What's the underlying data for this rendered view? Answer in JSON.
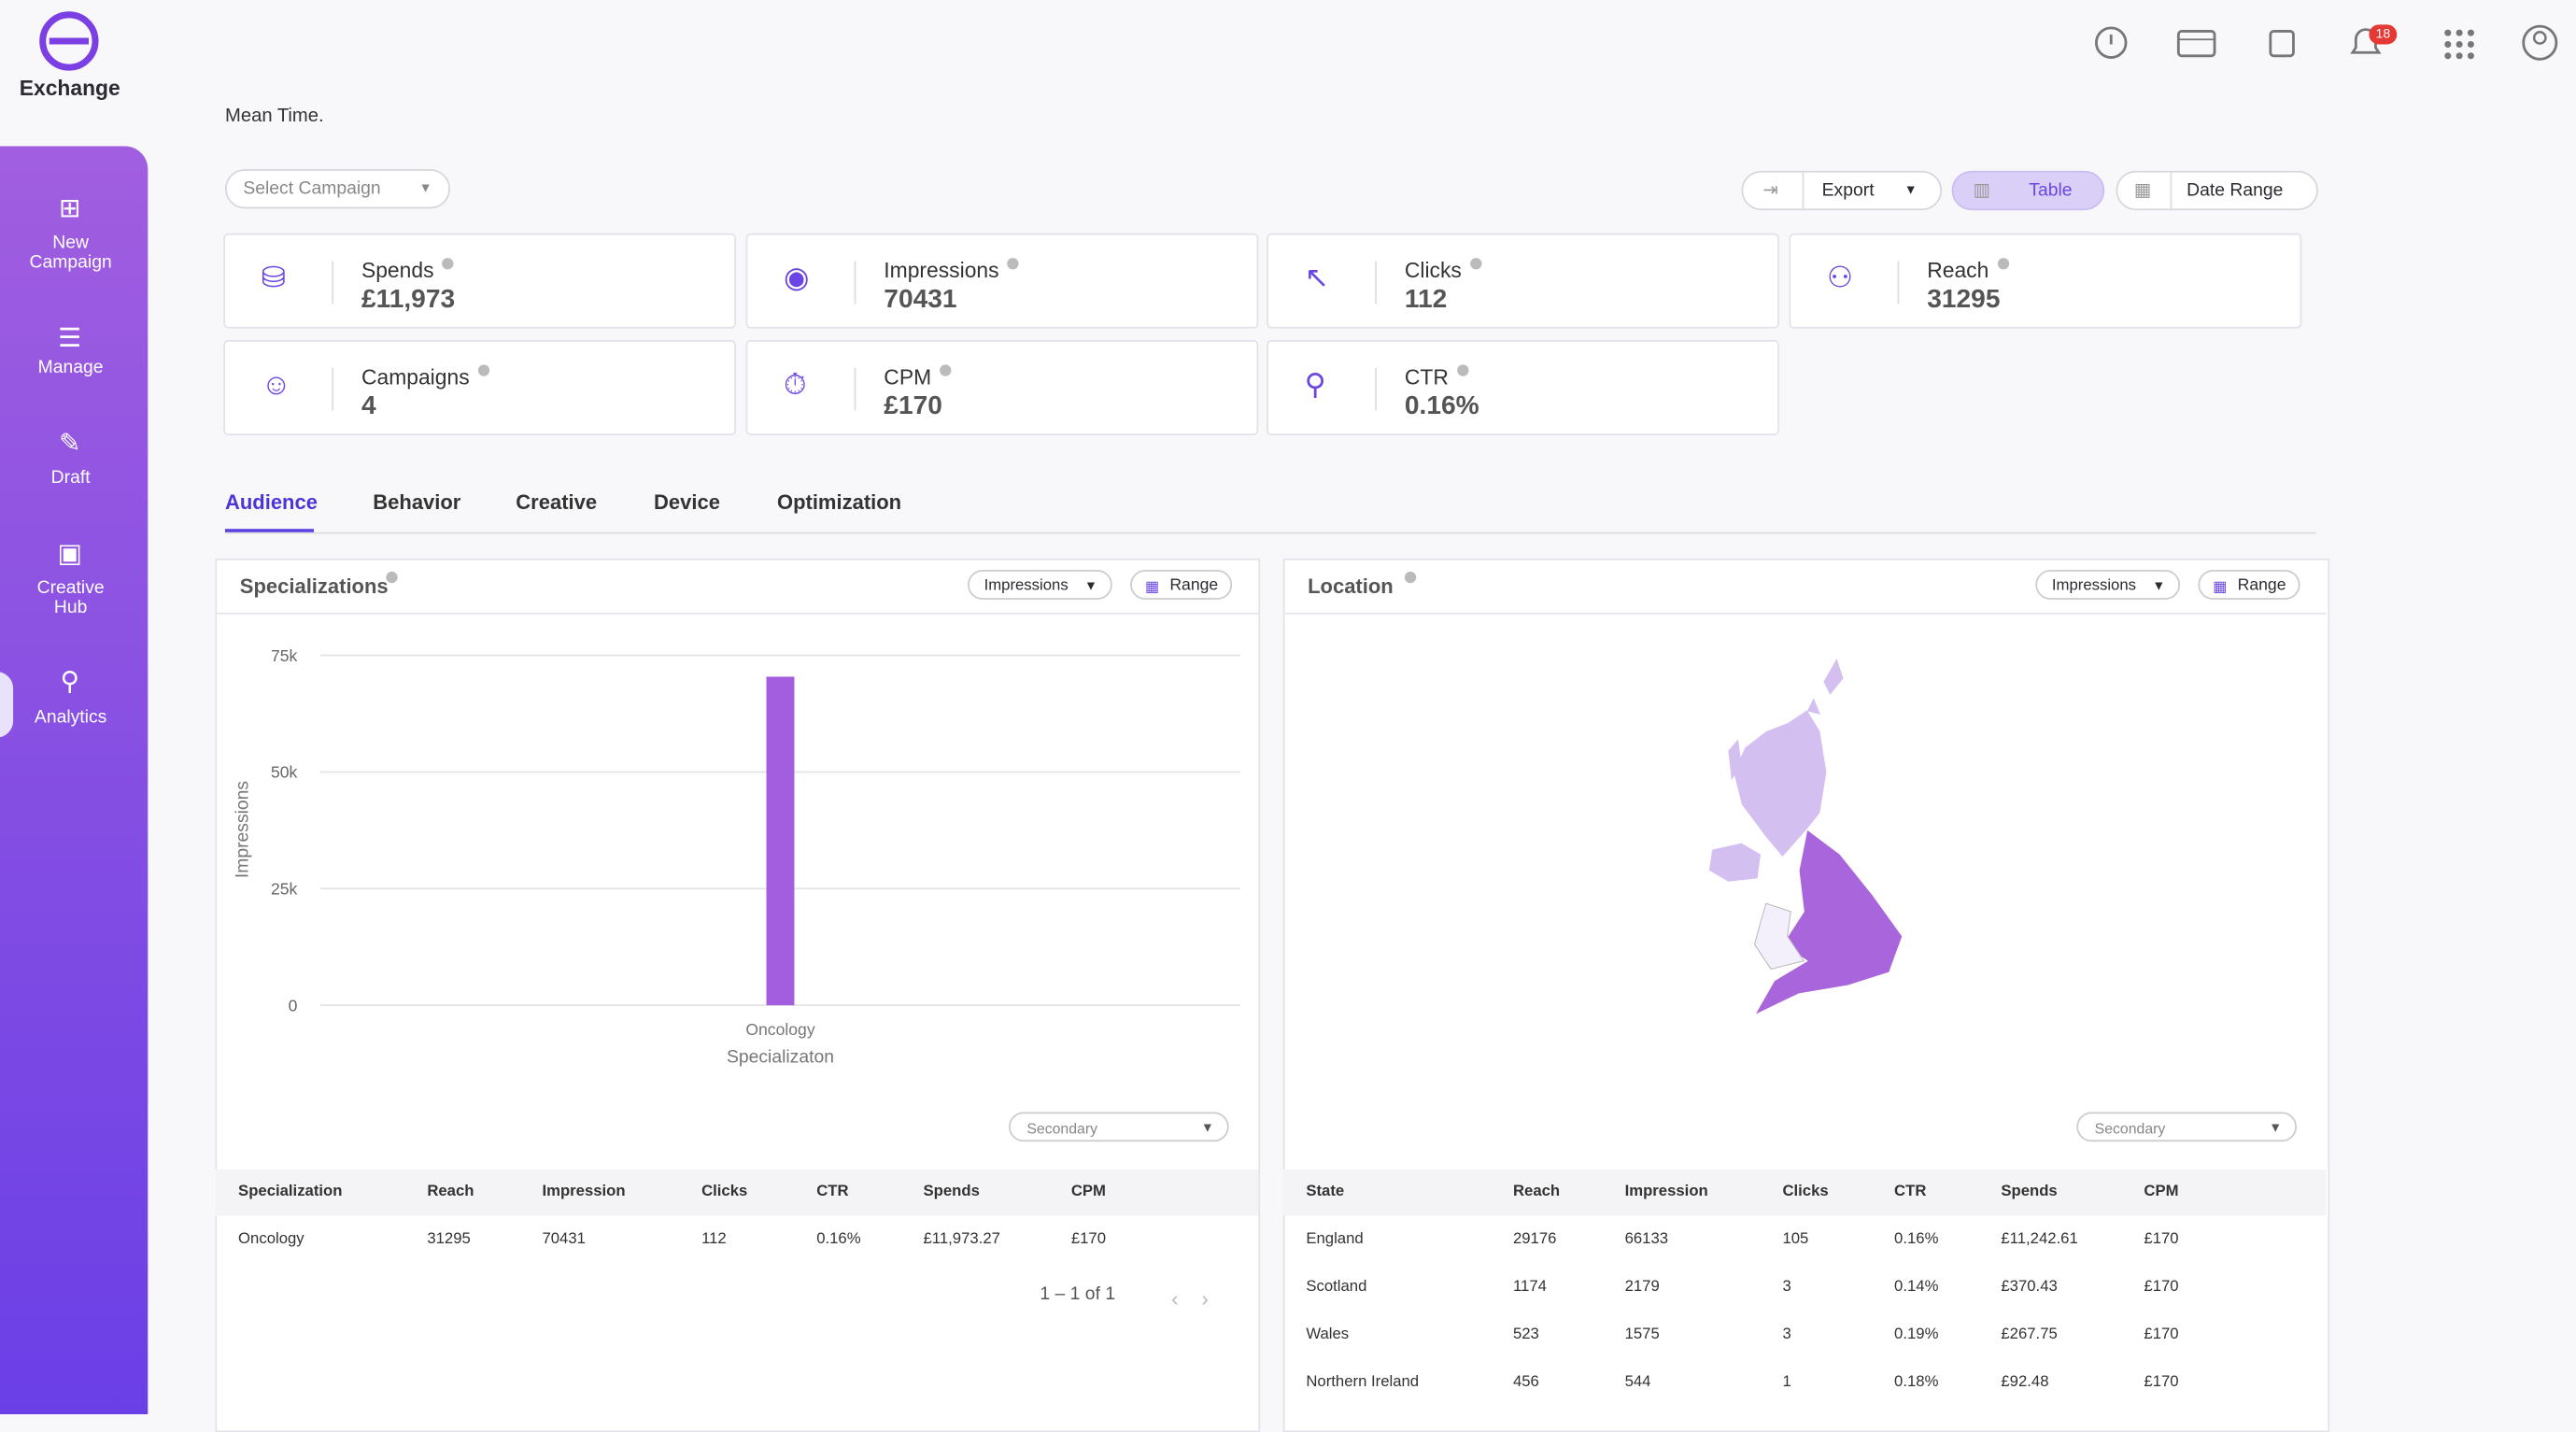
{
  "header": {
    "logo": "Exchange",
    "notifications": "18"
  },
  "sidebar": {
    "items": [
      "New\nCampaign",
      "Manage",
      "Draft",
      "Creative\nHub",
      "Analytics"
    ]
  },
  "intro": "Mean Time.",
  "toolbar": {
    "campaign_select": "Select Campaign",
    "export": "Export",
    "view": "Table",
    "date_range": "Date Range"
  },
  "stats": [
    {
      "label": "Spends",
      "value": "£11,973"
    },
    {
      "label": "Impressions",
      "value": "70431"
    },
    {
      "label": "Clicks",
      "value": "112"
    },
    {
      "label": "Reach",
      "value": "31295"
    },
    {
      "label": "Campaigns",
      "value": "4"
    },
    {
      "label": "CPM",
      "value": "£170"
    },
    {
      "label": "CTR",
      "value": "0.16%"
    }
  ],
  "tabs": [
    "Audience",
    "Behavior",
    "Creative",
    "Device",
    "Optimization"
  ],
  "specializations": {
    "title": "Specializations",
    "metric": "Impressions",
    "range": "Range",
    "secondary": "Secondary",
    "table": {
      "columns": [
        "Specialization",
        "Reach",
        "Impression",
        "Clicks",
        "CTR",
        "Spends",
        "CPM"
      ],
      "rows": [
        [
          "Oncology",
          "31295",
          "70431",
          "112",
          "0.16%",
          "£11,973.27",
          "£170"
        ]
      ]
    },
    "pagination": "1 – 1 of 1"
  },
  "location": {
    "title": "Location",
    "metric": "Impressions",
    "range": "Range",
    "secondary": "Secondary",
    "table": {
      "columns": [
        "State",
        "Reach",
        "Impression",
        "Clicks",
        "CTR",
        "Spends",
        "CPM"
      ],
      "rows": [
        [
          "England",
          "29176",
          "66133",
          "105",
          "0.16%",
          "£11,242.61",
          "£170"
        ],
        [
          "Scotland",
          "1174",
          "2179",
          "3",
          "0.14%",
          "£370.43",
          "£170"
        ],
        [
          "Wales",
          "523",
          "1575",
          "3",
          "0.19%",
          "£267.75",
          "£170"
        ],
        [
          "Northern Ireland",
          "456",
          "544",
          "1",
          "0.18%",
          "£92.48",
          "£170"
        ]
      ]
    }
  },
  "chart_data": {
    "type": "bar",
    "categories": [
      "Oncology"
    ],
    "values": [
      70431
    ],
    "color": "#a35ee0",
    "x_label": "Specializaton",
    "y_label": "Impressions",
    "ylim": [
      0,
      75000
    ],
    "yticks": [
      0,
      {
        "value": 25000,
        "label": "25k"
      },
      {
        "value": 50000,
        "label": "50k"
      },
      {
        "value": 75000,
        "label": "75k"
      }
    ],
    "grid": true
  }
}
